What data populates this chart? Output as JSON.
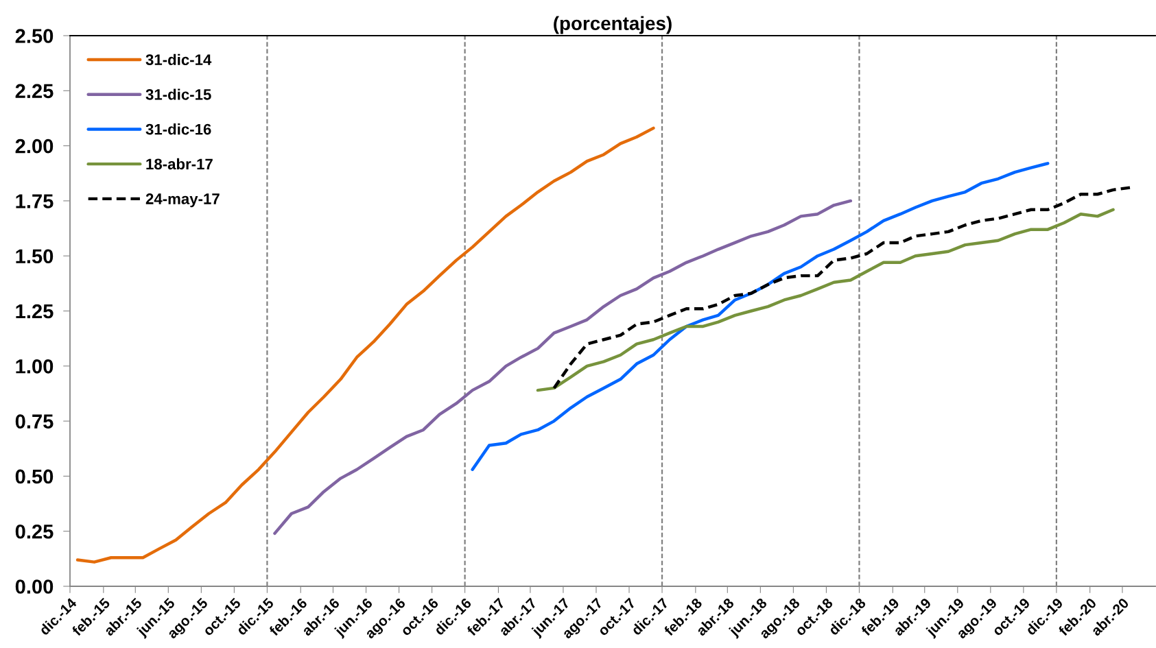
{
  "chart_data": {
    "type": "line",
    "title": "(porcentajes)",
    "x": [
      "2014-12-15",
      "2015-01-15",
      "2015-02-15",
      "2015-03-15",
      "2015-04-15",
      "2015-05-15",
      "2015-06-15",
      "2015-07-15",
      "2015-08-15",
      "2015-09-15",
      "2015-10-15",
      "2015-11-15",
      "2015-12-15",
      "2016-01-15",
      "2016-02-15",
      "2016-03-15",
      "2016-04-15",
      "2016-05-15",
      "2016-06-15",
      "2016-07-15",
      "2016-08-15",
      "2016-09-15",
      "2016-10-15",
      "2016-11-15",
      "2016-12-15",
      "2017-01-15",
      "2017-02-15",
      "2017-03-15",
      "2017-04-15",
      "2017-05-15",
      "2017-06-15",
      "2017-07-15",
      "2017-08-15",
      "2017-09-15",
      "2017-10-15",
      "2017-11-15",
      "2017-12-15",
      "2018-01-15",
      "2018-02-15",
      "2018-03-15",
      "2018-04-15",
      "2018-05-15",
      "2018-06-15",
      "2018-07-15",
      "2018-08-15",
      "2018-09-15",
      "2018-10-15",
      "2018-11-15",
      "2018-12-15",
      "2019-01-15",
      "2019-02-15",
      "2019-03-15",
      "2019-04-15",
      "2019-05-15",
      "2019-06-15",
      "2019-07-15",
      "2019-08-15",
      "2019-09-15",
      "2019-10-15",
      "2019-11-15",
      "2019-12-15",
      "2020-01-15",
      "2020-02-15",
      "2020-03-15",
      "2020-04-15"
    ],
    "series": [
      {
        "name": "31-dic-14",
        "color": "#e46c0a",
        "values": [
          0.12,
          0.11,
          0.13,
          0.13,
          0.13,
          0.17,
          0.21,
          0.27,
          0.33,
          0.38,
          0.46,
          0.53,
          0.61,
          0.7,
          0.79,
          0.86,
          0.94,
          1.04,
          1.11,
          1.19,
          1.28,
          1.34,
          1.41,
          1.48,
          1.54,
          1.61,
          1.68,
          1.73,
          1.79,
          1.84,
          1.88,
          1.93,
          1.96,
          2.01,
          2.04,
          2.08,
          null,
          null,
          null,
          null,
          null,
          null,
          null,
          null,
          null,
          null,
          null,
          null,
          null,
          null,
          null,
          null,
          null,
          null,
          null,
          null,
          null,
          null,
          null,
          null,
          null,
          null,
          null,
          null,
          null
        ]
      },
      {
        "name": "31-dic-15",
        "color": "#8064a2",
        "values": [
          null,
          null,
          null,
          null,
          null,
          null,
          null,
          null,
          null,
          null,
          null,
          null,
          0.24,
          0.33,
          0.36,
          0.43,
          0.49,
          0.53,
          0.58,
          0.63,
          0.68,
          0.71,
          0.78,
          0.83,
          0.89,
          0.93,
          1.0,
          1.04,
          1.08,
          1.15,
          1.18,
          1.21,
          1.27,
          1.32,
          1.35,
          1.4,
          1.43,
          1.47,
          1.5,
          1.53,
          1.56,
          1.59,
          1.61,
          1.64,
          1.68,
          1.69,
          1.73,
          1.75,
          null,
          null,
          null,
          null,
          null,
          null,
          null,
          null,
          null,
          null,
          null,
          null,
          null,
          null,
          null,
          null,
          null
        ]
      },
      {
        "name": "31-dic-16",
        "color": "#0066ff",
        "values": [
          null,
          null,
          null,
          null,
          null,
          null,
          null,
          null,
          null,
          null,
          null,
          null,
          null,
          null,
          null,
          null,
          null,
          null,
          null,
          null,
          null,
          null,
          null,
          null,
          0.53,
          0.64,
          0.65,
          0.69,
          0.71,
          0.75,
          0.81,
          0.86,
          0.9,
          0.94,
          1.01,
          1.05,
          1.12,
          1.18,
          1.21,
          1.23,
          1.3,
          1.33,
          1.37,
          1.42,
          1.45,
          1.5,
          1.53,
          1.57,
          1.61,
          1.66,
          1.69,
          1.72,
          1.75,
          1.77,
          1.79,
          1.83,
          1.85,
          1.88,
          1.9,
          1.92,
          null,
          null,
          null,
          null,
          null
        ]
      },
      {
        "name": "18-abr-17",
        "color": "#77933c",
        "values": [
          null,
          null,
          null,
          null,
          null,
          null,
          null,
          null,
          null,
          null,
          null,
          null,
          null,
          null,
          null,
          null,
          null,
          null,
          null,
          null,
          null,
          null,
          null,
          null,
          null,
          null,
          null,
          null,
          0.89,
          0.9,
          0.95,
          1.0,
          1.02,
          1.05,
          1.1,
          1.12,
          1.15,
          1.18,
          1.18,
          1.2,
          1.23,
          1.25,
          1.27,
          1.3,
          1.32,
          1.35,
          1.38,
          1.39,
          1.43,
          1.47,
          1.47,
          1.5,
          1.51,
          1.52,
          1.55,
          1.56,
          1.57,
          1.6,
          1.62,
          1.62,
          1.65,
          1.69,
          1.68,
          1.71,
          null
        ]
      },
      {
        "name": "24-may-17",
        "color": "#000000",
        "line_style": "dashed",
        "values": [
          null,
          null,
          null,
          null,
          null,
          null,
          null,
          null,
          null,
          null,
          null,
          null,
          null,
          null,
          null,
          null,
          null,
          null,
          null,
          null,
          null,
          null,
          null,
          null,
          null,
          null,
          null,
          null,
          null,
          0.9,
          1.01,
          1.1,
          1.12,
          1.14,
          1.19,
          1.2,
          1.23,
          1.26,
          1.26,
          1.28,
          1.32,
          1.33,
          1.37,
          1.4,
          1.41,
          1.41,
          1.48,
          1.49,
          1.51,
          1.56,
          1.56,
          1.59,
          1.6,
          1.61,
          1.64,
          1.66,
          1.67,
          1.69,
          1.71,
          1.71,
          1.74,
          1.78,
          1.78,
          1.8,
          1.81
        ]
      }
    ],
    "xlim": [
      "2014-12-01",
      "2020-06-01"
    ],
    "xticks": [
      {
        "value": "2014-12-01",
        "label": "dic.-14"
      },
      {
        "value": "2015-02-01",
        "label": "feb.-15"
      },
      {
        "value": "2015-04-01",
        "label": "abr.-15"
      },
      {
        "value": "2015-06-01",
        "label": "jun.-15"
      },
      {
        "value": "2015-08-01",
        "label": "ago.-15"
      },
      {
        "value": "2015-10-01",
        "label": "oct.-15"
      },
      {
        "value": "2015-12-01",
        "label": "dic.-15"
      },
      {
        "value": "2016-02-01",
        "label": "feb.-16"
      },
      {
        "value": "2016-04-01",
        "label": "abr.-16"
      },
      {
        "value": "2016-06-01",
        "label": "jun.-16"
      },
      {
        "value": "2016-08-01",
        "label": "ago.-16"
      },
      {
        "value": "2016-10-01",
        "label": "oct.-16"
      },
      {
        "value": "2016-12-01",
        "label": "dic.-16"
      },
      {
        "value": "2017-02-01",
        "label": "feb.-17"
      },
      {
        "value": "2017-04-01",
        "label": "abr.-17"
      },
      {
        "value": "2017-06-01",
        "label": "jun.-17"
      },
      {
        "value": "2017-08-01",
        "label": "ago.-17"
      },
      {
        "value": "2017-10-01",
        "label": "oct.-17"
      },
      {
        "value": "2017-12-01",
        "label": "dic.-17"
      },
      {
        "value": "2018-02-01",
        "label": "feb.-18"
      },
      {
        "value": "2018-04-01",
        "label": "abr.-18"
      },
      {
        "value": "2018-06-01",
        "label": "jun.-18"
      },
      {
        "value": "2018-08-01",
        "label": "ago.-18"
      },
      {
        "value": "2018-10-01",
        "label": "oct.-18"
      },
      {
        "value": "2018-12-01",
        "label": "dic.-18"
      },
      {
        "value": "2019-02-01",
        "label": "feb.-19"
      },
      {
        "value": "2019-04-01",
        "label": "abr.-19"
      },
      {
        "value": "2019-06-01",
        "label": "jun.-19"
      },
      {
        "value": "2019-08-01",
        "label": "ago.-19"
      },
      {
        "value": "2019-10-01",
        "label": "oct.-19"
      },
      {
        "value": "2019-12-01",
        "label": "dic.-19"
      },
      {
        "value": "2020-02-01",
        "label": "feb.-20"
      },
      {
        "value": "2020-04-01",
        "label": "abr.-20"
      }
    ],
    "ylim": [
      0,
      2.5
    ],
    "yticks": [
      {
        "value": 0,
        "label": "0.00"
      },
      {
        "value": 0.25,
        "label": "0.25"
      },
      {
        "value": 0.5,
        "label": "0.50"
      },
      {
        "value": 0.75,
        "label": "0.75"
      },
      {
        "value": 1,
        "label": "1.00"
      },
      {
        "value": 1.25,
        "label": "1.25"
      },
      {
        "value": 1.5,
        "label": "1.50"
      },
      {
        "value": 1.75,
        "label": "1.75"
      },
      {
        "value": 2,
        "label": "2.00"
      },
      {
        "value": 2.25,
        "label": "2.25"
      },
      {
        "value": 2.5,
        "label": "2.50"
      }
    ],
    "grid": false,
    "legend": "top left",
    "line_style": "solid",
    "ref_lines": [
      {
        "axis": "x",
        "value": "2015-12-01",
        "color": "#808080",
        "line_style": "dashed"
      },
      {
        "axis": "x",
        "value": "2016-12-01",
        "color": "#808080",
        "line_style": "dashed"
      },
      {
        "axis": "x",
        "value": "2017-12-01",
        "color": "#808080",
        "line_style": "dashed"
      },
      {
        "axis": "x",
        "value": "2018-12-01",
        "color": "#808080",
        "line_style": "dashed"
      },
      {
        "axis": "x",
        "value": "2019-12-01",
        "color": "#808080",
        "line_style": "dashed"
      }
    ]
  }
}
